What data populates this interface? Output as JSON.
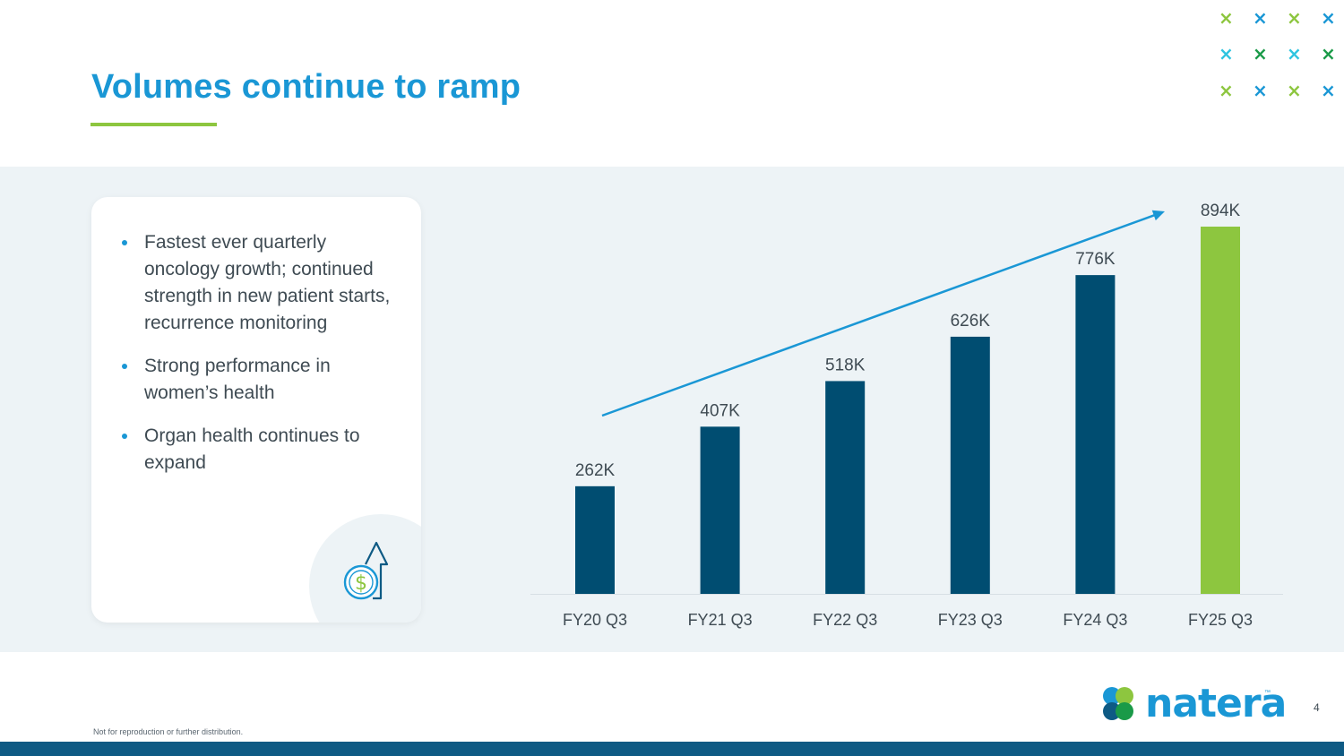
{
  "slide": {
    "title": "Volumes continue to ramp",
    "bullets": [
      "Fastest ever quarterly oncology growth; continued strength in new patient starts, recurrence monitoring",
      "Strong performance in women’s health",
      "Organ health continues to expand"
    ],
    "footer_note": "Not for reproduction or further distribution.",
    "page_number": "4",
    "logo_text": "natera",
    "logo_tm": "™",
    "decor_marks": [
      "×",
      "×",
      "×",
      "×",
      "×",
      "×",
      "×",
      "×",
      "×",
      "×",
      "×",
      "×"
    ]
  },
  "colors": {
    "title": "#1a97d5",
    "accent_green": "#8dc63f",
    "bar_navy": "#004d71",
    "bar_highlight": "#8dc63f",
    "arrow": "#1a97d5",
    "label": "#3f4b53",
    "decor": [
      "#8dc63f",
      "#1a97d5",
      "#8dc63f",
      "#1a97d5",
      "#2ec4e0",
      "#1a9a48",
      "#2ec4e0",
      "#1a9a48",
      "#8dc63f",
      "#1a97d5",
      "#8dc63f",
      "#1a97d5"
    ],
    "logo_petals": [
      "#1a97d5",
      "#8dc63f",
      "#0e5a84",
      "#1a9a48"
    ]
  },
  "chart_data": {
    "type": "bar",
    "title": "",
    "xlabel": "",
    "ylabel": "",
    "categories": [
      "FY20 Q3",
      "FY21 Q3",
      "FY22 Q3",
      "FY23 Q3",
      "FY24 Q3",
      "FY25 Q3"
    ],
    "values": [
      262,
      407,
      518,
      626,
      776,
      894
    ],
    "labels": [
      "262K",
      "407K",
      "518K",
      "626K",
      "776K",
      "894K"
    ],
    "units": "K tests",
    "highlight_index": 5,
    "ylim": [
      0,
      894
    ],
    "grid": false,
    "annotations": [
      "upward trend arrow"
    ]
  }
}
